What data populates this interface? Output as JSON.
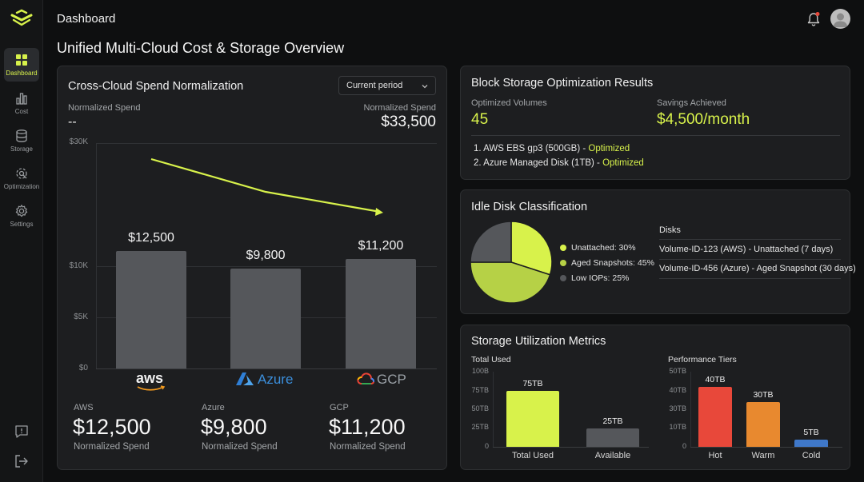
{
  "header": {
    "title": "Dashboard",
    "page_title": "Unified Multi-Cloud Cost & Storage Overview"
  },
  "sidebar": {
    "items": [
      {
        "label": "Dashboard",
        "icon": "grid-icon",
        "active": true
      },
      {
        "label": "Cost",
        "icon": "bar-chart-icon"
      },
      {
        "label": "Storage",
        "icon": "database-icon"
      },
      {
        "label": "Optimization",
        "icon": "optimization-icon"
      },
      {
        "label": "Settings",
        "icon": "gear-icon"
      }
    ],
    "bottom": [
      "feedback-icon",
      "logout-icon"
    ]
  },
  "spend": {
    "title": "Cross-Cloud Spend Normalization",
    "dropdown": "Current period",
    "left_label": "Normalized Spend",
    "left_value": "--",
    "right_label": "Normalized Spend",
    "right_value": "$33,500"
  },
  "chart_data": {
    "type": "bar",
    "categories": [
      "AWS",
      "Azure",
      "GCP"
    ],
    "values": [
      12500,
      9800,
      11200
    ],
    "data_labels": [
      "$12,500",
      "$9,800",
      "$11,200"
    ],
    "yticks": [
      "$30K",
      "$10K",
      "$5K",
      "$0"
    ],
    "ytick_values": [
      30000,
      10000,
      5000,
      0
    ],
    "ylim": [
      0,
      30000
    ],
    "grid": true,
    "trend_line": {
      "x": [
        "AWS",
        "Azure",
        "GCP"
      ]
    },
    "colors": {
      "bar": "#55575b",
      "trend": "#d8f24b"
    }
  },
  "providers": [
    {
      "name": "AWS",
      "value": "$12,500",
      "sub": "Normalized Spend",
      "logo": "aws"
    },
    {
      "name": "Azure",
      "value": "$9,800",
      "sub": "Normalized Spend",
      "logo": "Azure"
    },
    {
      "name": "GCP",
      "value": "$11,200",
      "sub": "Normalized Spend",
      "logo": "GCP"
    }
  ],
  "block": {
    "title": "Block Storage Optimization Results",
    "optimized_label": "Optimized Volumes",
    "optimized_value": "45",
    "savings_label": "Savings Achieved",
    "savings_value": "$4,500/month",
    "items": [
      {
        "text": "1. AWS EBS gp3 (500GB) - ",
        "status": "Optimized"
      },
      {
        "text": "2. Azure Managed Disk (1TB) - ",
        "status": "Optimized"
      }
    ]
  },
  "idle": {
    "title": "Idle Disk Classification",
    "legend": [
      {
        "label": "Unattached: 30%",
        "color": "#d8f24b",
        "value": 30
      },
      {
        "label": "Aged Snapshots: 45%",
        "color": "#b6d146",
        "value": 45
      },
      {
        "label": "Low IOPs: 25%",
        "color": "#55575b",
        "value": 25
      }
    ],
    "disks_header": "Disks",
    "disks": [
      "Volume-ID-123 (AWS) - Unattached (7 days)",
      "Volume-ID-456 (Azure) - Aged Snapshot (30 days)"
    ]
  },
  "util": {
    "title": "Storage Utilization Metrics",
    "total": {
      "title": "Total Used",
      "ticks": [
        "100B",
        "75TB",
        "50TB",
        "25TB",
        "0"
      ],
      "ymax": 100,
      "bars": [
        {
          "label": "Total Used",
          "value": 75,
          "value_label": "75TB",
          "color": "#d8f24b"
        },
        {
          "label": "Available",
          "value": 25,
          "value_label": "25TB",
          "color": "#55575b"
        }
      ]
    },
    "tiers": {
      "title": "Performance Tiers",
      "ticks": [
        "50TB",
        "40TB",
        "30TB",
        "10TB",
        "0"
      ],
      "ymax": 50,
      "bars": [
        {
          "label": "Hot",
          "value": 40,
          "value_label": "40TB",
          "color": "#e8483a"
        },
        {
          "label": "Warm",
          "value": 30,
          "value_label": "30TB",
          "color": "#e8892f"
        },
        {
          "label": "Cold",
          "value": 5,
          "value_label": "5TB",
          "color": "#3f78c9"
        }
      ]
    }
  }
}
